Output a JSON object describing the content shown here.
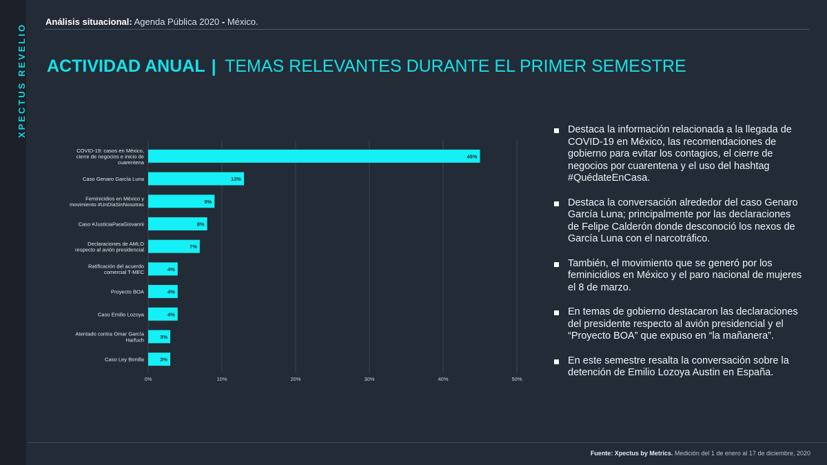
{
  "sidebar": {
    "brand": "XPECTUS REVELIO"
  },
  "header": {
    "label": "Análisis situacional:",
    "topic": "Agenda Pública 2020",
    "dash": "-",
    "country": "México."
  },
  "title": {
    "bold": "ACTIVIDAD ANUAL",
    "sep": "|",
    "rest": "TEMAS RELEVANTES DURANTE EL PRIMER SEMESTRE"
  },
  "chart_data": {
    "type": "bar",
    "orientation": "horizontal",
    "categories": [
      "COVID-19: casos en México, cierre de negocios e inicio de cuarentena",
      "Caso Genaro García Luna",
      "Feminicidios en México y movimiento #UnDíaSinNosotras",
      "Caso #JusticiaParaGiovanni",
      "Declaraciones de AMLO respecto al avión presidencial",
      "Ratificación del acuerdo comercial T-MEC",
      "Proyecto BOA",
      "Caso Emilio Lozoya",
      "Atentado contra Omar García Harfuch",
      "Caso Ley Bonilla"
    ],
    "category_lines": [
      [
        "COVID-19: casos en México,",
        "cierre de negocios e inicio de",
        "cuarentena"
      ],
      [
        "Caso Genaro García Luna"
      ],
      [
        "Feminicidios en México y",
        "movimiento #UnDíaSinNosotras"
      ],
      [
        "Caso #JusticiaParaGiovanni"
      ],
      [
        "Declaraciones de AMLO",
        "respecto al avión presidencial"
      ],
      [
        "Ratificación del acuerdo",
        "comercial T-MEC"
      ],
      [
        "Proyecto BOA"
      ],
      [
        "Caso Emilio Lozoya"
      ],
      [
        "Atentado contra Omar García",
        "Harfuch"
      ],
      [
        "Caso Ley Bonilla"
      ]
    ],
    "values": [
      45,
      13,
      9,
      8,
      7,
      4,
      4,
      4,
      3,
      3
    ],
    "value_labels": [
      "45%",
      "13%",
      "9%",
      "8%",
      "7%",
      "4%",
      "4%",
      "4%",
      "3%",
      "3%"
    ],
    "xlim": [
      0,
      50
    ],
    "xticks": [
      0,
      10,
      20,
      30,
      40,
      50
    ],
    "xtick_labels": [
      "0%",
      "10%",
      "20%",
      "30%",
      "40%",
      "50%"
    ],
    "grid": true,
    "bar_color": "#14f0f5"
  },
  "bullets": [
    "Destaca la información relacionada a la llegada de COVID-19 en México, las recomendaciones de gobierno para evitar los contagios, el cierre de negocios por cuarentena y el uso del hashtag #QuédateEnCasa.",
    "Destaca la conversación alrededor del caso Genaro García Luna; principalmente por las declaraciones de Felipe Calderón donde desconoció los nexos de García Luna con el narcotráfico.",
    "También, el movimiento que se generó por los feminicidios en México y el paro nacional de mujeres el 8 de marzo.",
    "En temas de gobierno destacaron las declaraciones del presidente respecto al avión presidencial y el “Proyecto BOA” que expuso en “la mañanera”.",
    "En este semestre resalta la conversación sobre la detención de Emilio Lozoya Austin en España."
  ],
  "footer": {
    "source_label": "Fuente: Xpectus by Metrics.",
    "note": "Medición del 1 de enero al 17 de diciembre, 2020"
  },
  "colors": {
    "background": "#232b36",
    "accent": "#16e0e8",
    "bar": "#14f0f5"
  }
}
